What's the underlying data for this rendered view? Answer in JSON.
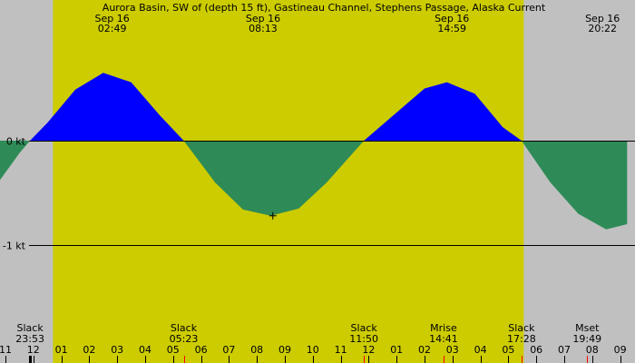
{
  "chart_data": {
    "type": "area",
    "title": "Aurora Basin, SW of (depth 15 ft), Gastineau Channel, Stephens Passage, Alaska Current",
    "y_unit": "kt",
    "ylim": [
      -1.4,
      1.35
    ],
    "xlim": [
      10.5,
      33.25
    ],
    "y_ticks": [
      {
        "value": 0,
        "label": "0 kt"
      },
      {
        "value": -1,
        "label": "-1 kt"
      }
    ],
    "daylight": {
      "start": 12.7,
      "end": 29.55
    },
    "colors": {
      "background": "#c0c0c0",
      "daylight": "#cccc00",
      "flood": "#0000ff",
      "ebb": "#2e8b57",
      "tick_red": "#ff0000",
      "mark": "#000000"
    },
    "current": [
      {
        "t": 10.5,
        "v": -0.49
      },
      {
        "t": 11.5,
        "v": -0.12
      },
      {
        "t": 11.88,
        "v": 0.0
      },
      {
        "t": 12.5,
        "v": 0.17
      },
      {
        "t": 13.5,
        "v": 0.49
      },
      {
        "t": 14.5,
        "v": 0.65
      },
      {
        "t": 15.5,
        "v": 0.56
      },
      {
        "t": 16.5,
        "v": 0.25
      },
      {
        "t": 17.38,
        "v": 0.0
      },
      {
        "t": 18.5,
        "v": -0.4
      },
      {
        "t": 19.5,
        "v": -0.66
      },
      {
        "t": 20.5,
        "v": -0.72
      },
      {
        "t": 21.5,
        "v": -0.65
      },
      {
        "t": 22.5,
        "v": -0.4
      },
      {
        "t": 23.83,
        "v": 0.0
      },
      {
        "t": 25.0,
        "v": 0.27
      },
      {
        "t": 26.0,
        "v": 0.5
      },
      {
        "t": 26.8,
        "v": 0.56
      },
      {
        "t": 27.8,
        "v": 0.45
      },
      {
        "t": 28.8,
        "v": 0.13
      },
      {
        "t": 29.47,
        "v": 0.0
      },
      {
        "t": 30.5,
        "v": -0.4
      },
      {
        "t": 31.5,
        "v": -0.7
      },
      {
        "t": 32.5,
        "v": -0.85
      },
      {
        "t": 33.25,
        "v": -0.8
      }
    ],
    "marker": {
      "t": 20.57,
      "v": -0.72,
      "symbol": "+"
    },
    "top_events": [
      {
        "date": "Sep 16",
        "time": "02:49",
        "t": 14.82
      },
      {
        "date": "Sep 16",
        "time": "08:13",
        "t": 20.22
      },
      {
        "date": "Sep 16",
        "time": "14:59",
        "t": 26.98
      },
      {
        "date": "Sep 16",
        "time": "20:22",
        "t": 32.37
      }
    ],
    "bottom_events": [
      {
        "label": "Slack",
        "time": "23:53",
        "t": 11.88
      },
      {
        "label": "Slack",
        "time": "05:23",
        "t": 17.38
      },
      {
        "label": "Slack",
        "time": "11:50",
        "t": 23.83
      },
      {
        "label": "Mrise",
        "time": "14:41",
        "t": 26.68
      },
      {
        "label": "Slack",
        "time": "17:28",
        "t": 29.47
      },
      {
        "label": "Mset",
        "time": "19:49",
        "t": 31.82
      }
    ],
    "hour_ticks": [
      {
        "t": 11,
        "label": "11"
      },
      {
        "t": 12,
        "label": "12"
      },
      {
        "t": 13,
        "label": "01"
      },
      {
        "t": 14,
        "label": "02"
      },
      {
        "t": 15,
        "label": "03"
      },
      {
        "t": 16,
        "label": "04"
      },
      {
        "t": 17,
        "label": "05"
      },
      {
        "t": 18,
        "label": "06"
      },
      {
        "t": 19,
        "label": "07"
      },
      {
        "t": 20,
        "label": "08"
      },
      {
        "t": 21,
        "label": "09"
      },
      {
        "t": 22,
        "label": "10"
      },
      {
        "t": 23,
        "label": "11"
      },
      {
        "t": 24,
        "label": "12"
      },
      {
        "t": 25,
        "label": "01"
      },
      {
        "t": 26,
        "label": "02"
      },
      {
        "t": 27,
        "label": "03"
      },
      {
        "t": 28,
        "label": "04"
      },
      {
        "t": 29,
        "label": "05"
      },
      {
        "t": 30,
        "label": "06"
      },
      {
        "t": 31,
        "label": "07"
      },
      {
        "t": 32,
        "label": "08"
      },
      {
        "t": 33,
        "label": "09"
      }
    ],
    "red_ticks": [
      17.38,
      23.83,
      26.68,
      29.47,
      31.82
    ],
    "black_ticks": [
      11.88
    ]
  }
}
